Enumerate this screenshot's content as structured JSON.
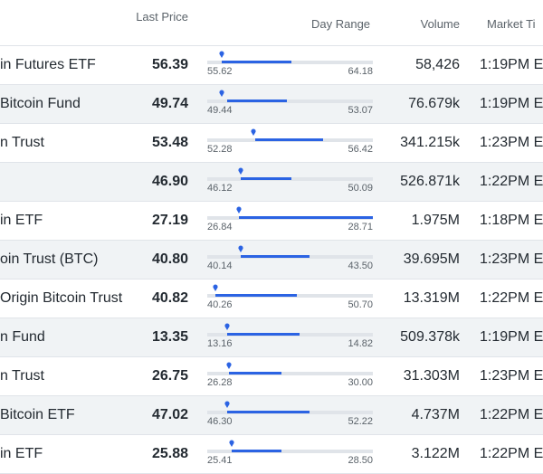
{
  "columns": {
    "last_price": "Last Price",
    "day_range": "Day Range",
    "volume": "Volume",
    "market_time": "Market Ti"
  },
  "rows": [
    {
      "name": "in Futures ETF",
      "price": "56.39",
      "low": "55.62",
      "high": "64.18",
      "volume": "58,426",
      "time": "1:19PM E",
      "range_start": 0.09,
      "range_end": 0.51,
      "marker": 0.09
    },
    {
      "name": "Bitcoin Fund",
      "price": "49.74",
      "low": "49.44",
      "high": "53.07",
      "volume": "76.679k",
      "time": "1:19PM E",
      "range_start": 0.12,
      "range_end": 0.48,
      "marker": 0.09
    },
    {
      "name": "n Trust",
      "price": "53.48",
      "low": "52.28",
      "high": "56.42",
      "volume": "341.215k",
      "time": "1:23PM E",
      "range_start": 0.29,
      "range_end": 0.7,
      "marker": 0.28
    },
    {
      "name": "",
      "price": "46.90",
      "low": "46.12",
      "high": "50.09",
      "volume": "526.871k",
      "time": "1:22PM E",
      "range_start": 0.2,
      "range_end": 0.51,
      "marker": 0.2
    },
    {
      "name": "in ETF",
      "price": "27.19",
      "low": "26.84",
      "high": "28.71",
      "volume": "1.975M",
      "time": "1:18PM E",
      "range_start": 0.19,
      "range_end": 1.0,
      "marker": 0.19
    },
    {
      "name": "oin Trust (BTC)",
      "price": "40.80",
      "low": "40.14",
      "high": "43.50",
      "volume": "39.695M",
      "time": "1:23PM E",
      "range_start": 0.2,
      "range_end": 0.62,
      "marker": 0.2
    },
    {
      "name": "Origin Bitcoin Trust",
      "price": "40.82",
      "low": "40.26",
      "high": "50.70",
      "volume": "13.319M",
      "time": "1:22PM E",
      "range_start": 0.05,
      "range_end": 0.54,
      "marker": 0.05
    },
    {
      "name": "n Fund",
      "price": "13.35",
      "low": "13.16",
      "high": "14.82",
      "volume": "509.378k",
      "time": "1:19PM E",
      "range_start": 0.12,
      "range_end": 0.56,
      "marker": 0.12
    },
    {
      "name": "n Trust",
      "price": "26.75",
      "low": "26.28",
      "high": "30.00",
      "volume": "31.303M",
      "time": "1:23PM E",
      "range_start": 0.13,
      "range_end": 0.45,
      "marker": 0.13
    },
    {
      "name": " Bitcoin ETF",
      "price": "47.02",
      "low": "46.30",
      "high": "52.22",
      "volume": "4.737M",
      "time": "1:22PM E",
      "range_start": 0.12,
      "range_end": 0.62,
      "marker": 0.12
    },
    {
      "name": "in ETF",
      "price": "25.88",
      "low": "25.41",
      "high": "28.50",
      "volume": "3.122M",
      "time": "1:22PM E",
      "range_start": 0.15,
      "range_end": 0.45,
      "marker": 0.15
    }
  ],
  "colors": {
    "accent": "#2b63e3",
    "row_alt": "#f0f3f5"
  },
  "icons": {
    "marker": "map-pin-icon"
  }
}
